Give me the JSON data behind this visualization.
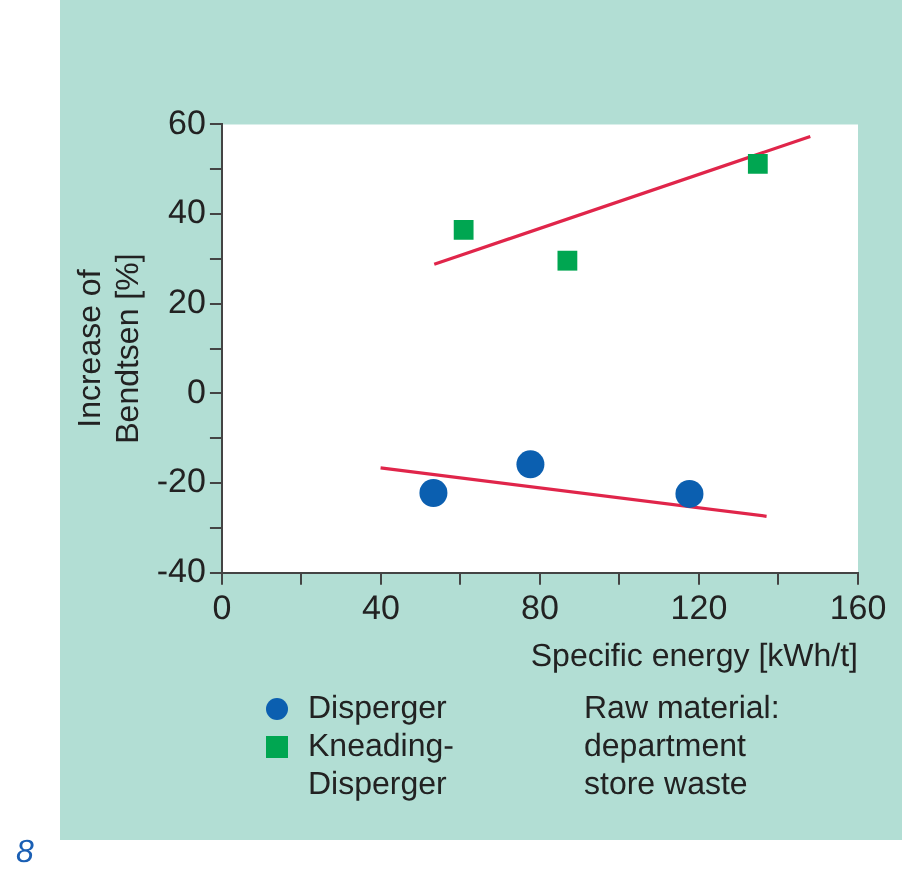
{
  "chart_data": {
    "type": "scatter",
    "xlabel": "Specific energy [kWh/t]",
    "ylabel": "Increase of\nBendtsen [%]",
    "xlim": [
      0,
      160
    ],
    "xticks": [
      0,
      {
        "value": 20,
        "label": null
      },
      40,
      {
        "value": 60,
        "label": null
      },
      80,
      {
        "value": 100,
        "label": null
      },
      120,
      {
        "value": 140,
        "label": null
      },
      160
    ],
    "ylim": [
      -40,
      60
    ],
    "yticks": [
      -40,
      {
        "value": -30,
        "label": null
      },
      -20,
      {
        "value": -10,
        "label": null
      },
      0,
      {
        "value": 10,
        "label": null
      },
      20,
      {
        "value": 30,
        "label": null
      },
      40,
      {
        "value": 50,
        "label": null
      },
      60
    ],
    "grid": false,
    "legend": "bottom left",
    "series": [
      {
        "name": "Disperger",
        "color": "#0b5fb0",
        "marker": "circle",
        "x": [
          53.2,
          77.6,
          117.6
        ],
        "values": [
          -22.2,
          -15.8,
          -22.4
        ]
      },
      {
        "name": "Kneading-Disperger",
        "color": "#00a651",
        "marker": "square",
        "x": [
          60.8,
          86.9,
          134.8
        ],
        "values": [
          36.5,
          29.6,
          51.2
        ]
      },
      {
        "type": "line",
        "color": "#e0254a",
        "line_style": "solid",
        "x": [
          39.9,
          137
        ],
        "values": [
          -16.6,
          -27.4
        ]
      },
      {
        "type": "line",
        "color": "#e0254a",
        "line_style": "solid",
        "x": [
          53.4,
          148
        ],
        "values": [
          28.8,
          57.3
        ]
      }
    ],
    "annotations": [
      "Raw material: department store waste",
      "8"
    ]
  }
}
